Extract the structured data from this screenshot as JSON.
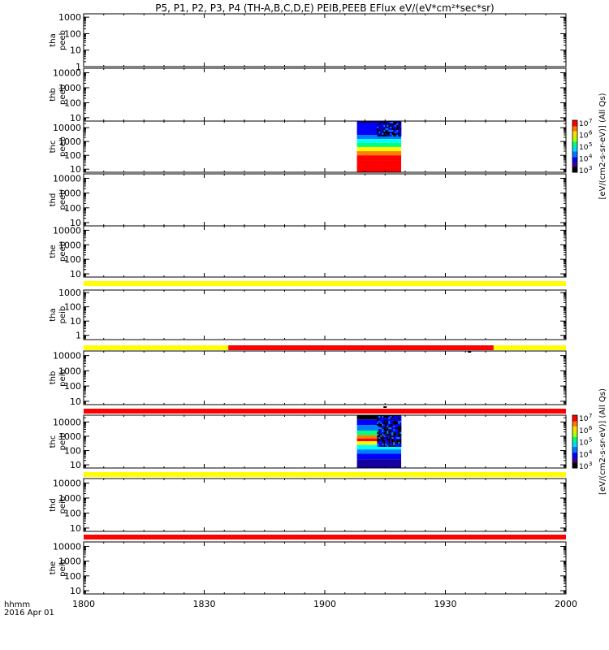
{
  "title": "P5, P1, P2, P3, P4 (TH-A,B,C,D,E) PEIB,PEEB EFlux eV/(eV*cm²*sec*sr)",
  "time_axis": {
    "label_line1": "hhmm",
    "label_line2": "2016 Apr 01",
    "ticks": [
      "1800",
      "1830",
      "1900",
      "1930",
      "2000"
    ]
  },
  "colorbars": [
    {
      "label": "[eV/(cm2-s-sr-eV)] (All Qs)",
      "tick_labels": [
        "10",
        "10",
        "10",
        "10",
        "10"
      ],
      "tick_exponents": [
        "3",
        "4",
        "5",
        "6",
        "7"
      ]
    },
    {
      "label": "[eV/(cm2-s-sr-eV)] (All Qs)",
      "tick_labels": [
        "10",
        "10",
        "10",
        "10",
        "10"
      ],
      "tick_exponents": [
        "3",
        "4",
        "5",
        "6",
        "7"
      ]
    }
  ],
  "colors": {
    "flag_yellow": "#ffff00",
    "flag_red": "#ff0000",
    "flag_black": "#000000",
    "colormap": [
      "#000000",
      "#1400a0",
      "#0000ff",
      "#0080ff",
      "#00ffff",
      "#00ff80",
      "#ffff00",
      "#ff8000",
      "#ff0000"
    ]
  },
  "chart_data": {
    "type": "heatmap",
    "x_range": [
      "18:00",
      "20:00"
    ],
    "scale": "log",
    "panels": [
      {
        "name": "tha peeb",
        "ylabel_line1": "tha",
        "ylabel_line2": "peeb",
        "ylim": [
          1,
          1600
        ],
        "yticks": [
          {
            "v": 1,
            "label": "1"
          },
          {
            "v": 10,
            "label": "10"
          },
          {
            "v": 100,
            "label": "100"
          },
          {
            "v": 1000,
            "label": "1000"
          }
        ],
        "spectra": []
      },
      {
        "name": "thb peeb",
        "ylabel_line1": "thb",
        "ylabel_line2": "peeb",
        "ylim": [
          6,
          20000
        ],
        "yticks": [
          {
            "v": 10,
            "label": "10"
          },
          {
            "v": 100,
            "label": "100"
          },
          {
            "v": 1000,
            "label": "1000"
          },
          {
            "v": 10000,
            "label": "10000"
          }
        ],
        "spectra": []
      },
      {
        "name": "thc peeb",
        "ylabel_line1": "thc",
        "ylabel_line2": "peeb",
        "ylim": [
          6,
          30000
        ],
        "yticks": [
          {
            "v": 10,
            "label": "10"
          },
          {
            "v": 100,
            "label": "100"
          },
          {
            "v": 1000,
            "label": "1000"
          },
          {
            "v": 10000,
            "label": "10000"
          }
        ],
        "spectra": [
          {
            "start": "19:08",
            "end": "19:19",
            "bands": [
              {
                "elo": 20000,
                "ehi": 30000,
                "level": 1
              },
              {
                "elo": 3000,
                "ehi": 20000,
                "level": 2
              },
              {
                "elo": 1500,
                "ehi": 3000,
                "level": 3
              },
              {
                "elo": 800,
                "ehi": 1500,
                "level": 4
              },
              {
                "elo": 400,
                "ehi": 800,
                "level": 5
              },
              {
                "elo": 200,
                "ehi": 400,
                "level": 6
              },
              {
                "elo": 100,
                "ehi": 200,
                "level": 7
              },
              {
                "elo": 40,
                "ehi": 100,
                "level": 7.5
              },
              {
                "elo": 6,
                "ehi": 40,
                "level": 8
              }
            ],
            "noise_above": 3000,
            "noise_from": "19:13"
          }
        ]
      },
      {
        "name": "thd peeb",
        "ylabel_line1": "thd",
        "ylabel_line2": "peeb",
        "ylim": [
          6,
          20000
        ],
        "yticks": [
          {
            "v": 10,
            "label": "10"
          },
          {
            "v": 100,
            "label": "100"
          },
          {
            "v": 1000,
            "label": "1000"
          },
          {
            "v": 10000,
            "label": "10000"
          }
        ],
        "spectra": []
      },
      {
        "name": "the peeb",
        "ylabel_line1": "the",
        "ylabel_line2": "peeb",
        "ylim": [
          6,
          20000
        ],
        "yticks": [
          {
            "v": 10,
            "label": "10"
          },
          {
            "v": 100,
            "label": "100"
          },
          {
            "v": 1000,
            "label": "1000"
          },
          {
            "v": 10000,
            "label": "10000"
          }
        ],
        "spectra": []
      },
      {
        "name": "tha peib",
        "ylabel_line1": "tha",
        "ylabel_line2": "peib",
        "ylim": [
          0.5,
          1500
        ],
        "yticks": [
          {
            "v": 1,
            "label": "1"
          },
          {
            "v": 10,
            "label": "10"
          },
          {
            "v": 100,
            "label": "100"
          },
          {
            "v": 1000,
            "label": "1000"
          }
        ],
        "spectra": []
      },
      {
        "name": "thb peib",
        "ylabel_line1": "thb",
        "ylabel_line2": "peib",
        "ylim": [
          6,
          20000
        ],
        "yticks": [
          {
            "v": 10,
            "label": "10"
          },
          {
            "v": 100,
            "label": "100"
          },
          {
            "v": 1000,
            "label": "1000"
          },
          {
            "v": 10000,
            "label": "10000"
          }
        ],
        "spectra": []
      },
      {
        "name": "thc peib",
        "ylabel_line1": "thc",
        "ylabel_line2": "peib",
        "ylim": [
          6,
          30000
        ],
        "yticks": [
          {
            "v": 10,
            "label": "10"
          },
          {
            "v": 100,
            "label": "100"
          },
          {
            "v": 1000,
            "label": "1000"
          },
          {
            "v": 10000,
            "label": "10000"
          }
        ],
        "spectra": [
          {
            "start": "19:08",
            "end": "19:19",
            "bands": [
              {
                "elo": 15000,
                "ehi": 30000,
                "level": 0
              },
              {
                "elo": 6000,
                "ehi": 15000,
                "level": 2
              },
              {
                "elo": 2500,
                "ehi": 6000,
                "level": 3
              },
              {
                "elo": 1200,
                "ehi": 2500,
                "level": 4.5
              },
              {
                "elo": 700,
                "ehi": 1200,
                "level": 6.5
              },
              {
                "elo": 450,
                "ehi": 700,
                "level": 8
              },
              {
                "elo": 250,
                "ehi": 450,
                "level": 6
              },
              {
                "elo": 120,
                "ehi": 250,
                "level": 4
              },
              {
                "elo": 60,
                "ehi": 120,
                "level": 3
              },
              {
                "elo": 25,
                "ehi": 60,
                "level": 2
              },
              {
                "elo": 6,
                "ehi": 25,
                "level": 0.5
              }
            ],
            "noise_above": 200,
            "noise_from": "19:13"
          }
        ]
      },
      {
        "name": "thd peib",
        "ylabel_line1": "thd",
        "ylabel_line2": "peib",
        "ylim": [
          6,
          20000
        ],
        "yticks": [
          {
            "v": 10,
            "label": "10"
          },
          {
            "v": 100,
            "label": "100"
          },
          {
            "v": 1000,
            "label": "1000"
          },
          {
            "v": 10000,
            "label": "10000"
          }
        ],
        "spectra": []
      },
      {
        "name": "the peib",
        "ylabel_line1": "the",
        "ylabel_line2": "peib",
        "ylim": [
          6,
          20000
        ],
        "yticks": [
          {
            "v": 10,
            "label": "10"
          },
          {
            "v": 100,
            "label": "100"
          },
          {
            "v": 1000,
            "label": "1000"
          },
          {
            "v": 10000,
            "label": "10000"
          }
        ],
        "spectra": []
      }
    ],
    "flag_bars": [
      {
        "above_panel": 5,
        "segments": [
          {
            "start": "18:00",
            "end": "20:00",
            "color": "yellow"
          }
        ]
      },
      {
        "above_panel": 6,
        "segments": [
          {
            "start": "18:00",
            "end": "18:36",
            "color": "yellow"
          },
          {
            "start": "18:36",
            "end": "19:42",
            "color": "red"
          },
          {
            "start": "19:42",
            "end": "20:00",
            "color": "yellow"
          }
        ],
        "marks": [
          {
            "time": "19:36",
            "color": "black"
          }
        ]
      },
      {
        "above_panel": 7,
        "segments": [
          {
            "start": "18:00",
            "end": "20:00",
            "color": "red"
          }
        ],
        "marks": [
          {
            "time": "19:15",
            "color": "black"
          }
        ]
      },
      {
        "above_panel": 8,
        "segments": [
          {
            "start": "18:00",
            "end": "20:00",
            "color": "yellow"
          }
        ]
      },
      {
        "above_panel": 9,
        "segments": [
          {
            "start": "18:00",
            "end": "20:00",
            "color": "red"
          }
        ]
      }
    ]
  }
}
